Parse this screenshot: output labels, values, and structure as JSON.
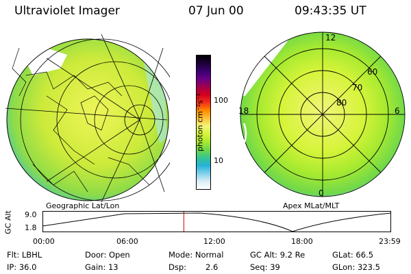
{
  "header": {
    "instrument": "Ultraviolet Imager",
    "date": "07 Jun 00",
    "time": "09:43:35 UT"
  },
  "left_panel": {
    "label": "Geographic Lat/Lon"
  },
  "right_panel": {
    "label": "Apex MLat/MLT",
    "mlt_labels": {
      "top": "12",
      "left": "18",
      "right": "6",
      "bottom": "0"
    },
    "lat_labels": [
      "60",
      "70",
      "80"
    ]
  },
  "colorbar": {
    "unit": "photon cm⁻²s⁻¹",
    "ticks": [
      "100",
      "10"
    ],
    "colors": [
      "#000000",
      "#1b0038",
      "#3a0070",
      "#6a0088",
      "#a0004a",
      "#d4001f",
      "#f4301a",
      "#ff8a00",
      "#ffc23a",
      "#f2f57a",
      "#d6f43a",
      "#a8ea30",
      "#6fd84a",
      "#39c58e",
      "#25b2d8",
      "#7fd0ec",
      "#d8eef4",
      "#ffffff"
    ]
  },
  "timeline": {
    "ylabel": "GC Alt",
    "y_ticks": [
      "9.0",
      "1.8"
    ],
    "x_ticks": [
      "00:00",
      "06:00",
      "12:00",
      "18:00",
      "23:59"
    ],
    "marker_time_hours": 9.73,
    "marker_color": "#cc0000"
  },
  "footer": {
    "filter": "Flt: LBHL",
    "ip": "IP: 36.0",
    "door": "Door: Open",
    "gain": "Gain: 13",
    "mode": "Mode: Normal",
    "dsp_label": "Dsp:",
    "dsp_value": "2.6",
    "gc_alt": "GC Alt: 9.2 Re",
    "seq": "Seq: 39",
    "glat": "GLat:  66.5",
    "glon": "GLon: 323.5"
  }
}
